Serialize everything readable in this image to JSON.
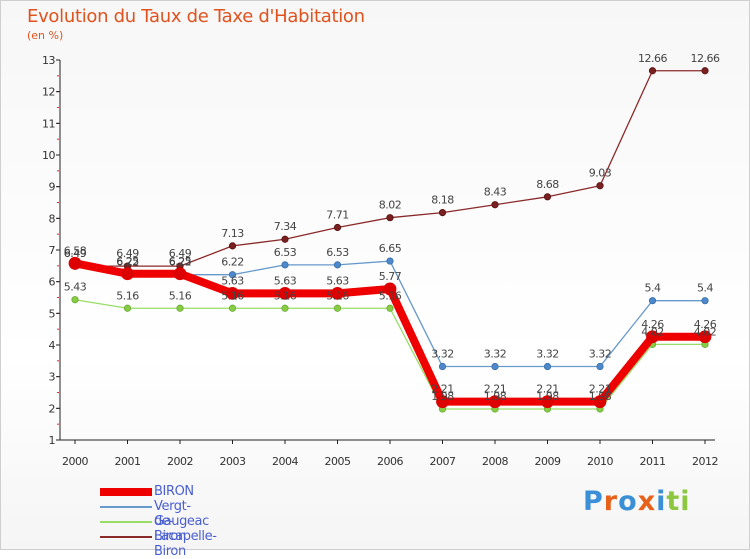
{
  "title": "Evolution du Taux de Taxe d'Habitation",
  "subtitle": "(en %)",
  "logo": {
    "text": "Proxiti",
    "colors": [
      "#3a8fd6",
      "#e8611a",
      "#3a8fd6",
      "#e8611a",
      "#3a8fd6",
      "#8dc63f",
      "#8dc63f"
    ]
  },
  "chart_data": {
    "type": "line",
    "x": [
      "2000",
      "2001",
      "2002",
      "2003",
      "2004",
      "2005",
      "2006",
      "2007",
      "2008",
      "2009",
      "2010",
      "2011",
      "2012"
    ],
    "ylim": [
      1,
      13
    ],
    "yticks": [
      1,
      2,
      3,
      4,
      5,
      6,
      7,
      8,
      9,
      10,
      11,
      12,
      13
    ],
    "grid": false,
    "legend_position": "bottom-left",
    "series": [
      {
        "name": "BIRON",
        "color": "#ee0000",
        "values": [
          6.58,
          6.25,
          6.25,
          5.63,
          5.63,
          5.63,
          5.77,
          2.21,
          2.21,
          2.21,
          2.21,
          4.26,
          4.26
        ],
        "labels": [
          "6.58",
          "6.25",
          "6.25",
          "5.63",
          "5.63",
          "5.63",
          "5.77",
          "2.21",
          "2.21",
          "2.21",
          "2.21",
          "4.26",
          "4.26"
        ]
      },
      {
        "name": "Vergt-de-Biron",
        "color": "#6699cc",
        "values": [
          6.49,
          6.22,
          6.22,
          6.22,
          6.53,
          6.53,
          6.65,
          3.32,
          3.32,
          3.32,
          3.32,
          5.4,
          5.4
        ],
        "labels": [
          "6.49",
          "6.22",
          "6.22",
          "6.22",
          "6.53",
          "6.53",
          "6.65",
          "3.32",
          "3.32",
          "3.32",
          "3.32",
          "5.4",
          "5.4"
        ]
      },
      {
        "name": "Gaugeac",
        "color": "#99dd66",
        "values": [
          5.43,
          5.16,
          5.16,
          5.16,
          5.16,
          5.16,
          5.16,
          1.98,
          1.98,
          1.98,
          1.98,
          4.02,
          4.02
        ],
        "labels": [
          "5.43",
          "5.16",
          "5.16",
          "5.16",
          "5.16",
          "5.16",
          "5.16",
          "1.98",
          "1.98",
          "1.98",
          "1.98",
          "4.02",
          "4.02"
        ]
      },
      {
        "name": "Lacapelle-Biron",
        "color": "#8b2a2a",
        "values": [
          6.49,
          6.49,
          6.49,
          7.13,
          7.34,
          7.71,
          8.02,
          8.18,
          8.43,
          8.68,
          9.03,
          12.66,
          12.66
        ],
        "labels": [
          "6.49",
          "6.49",
          "6.49",
          "7.13",
          "7.34",
          "7.71",
          "8.02",
          "8.18",
          "8.43",
          "8.68",
          "9.03",
          "12.66",
          "12.66"
        ]
      }
    ]
  }
}
